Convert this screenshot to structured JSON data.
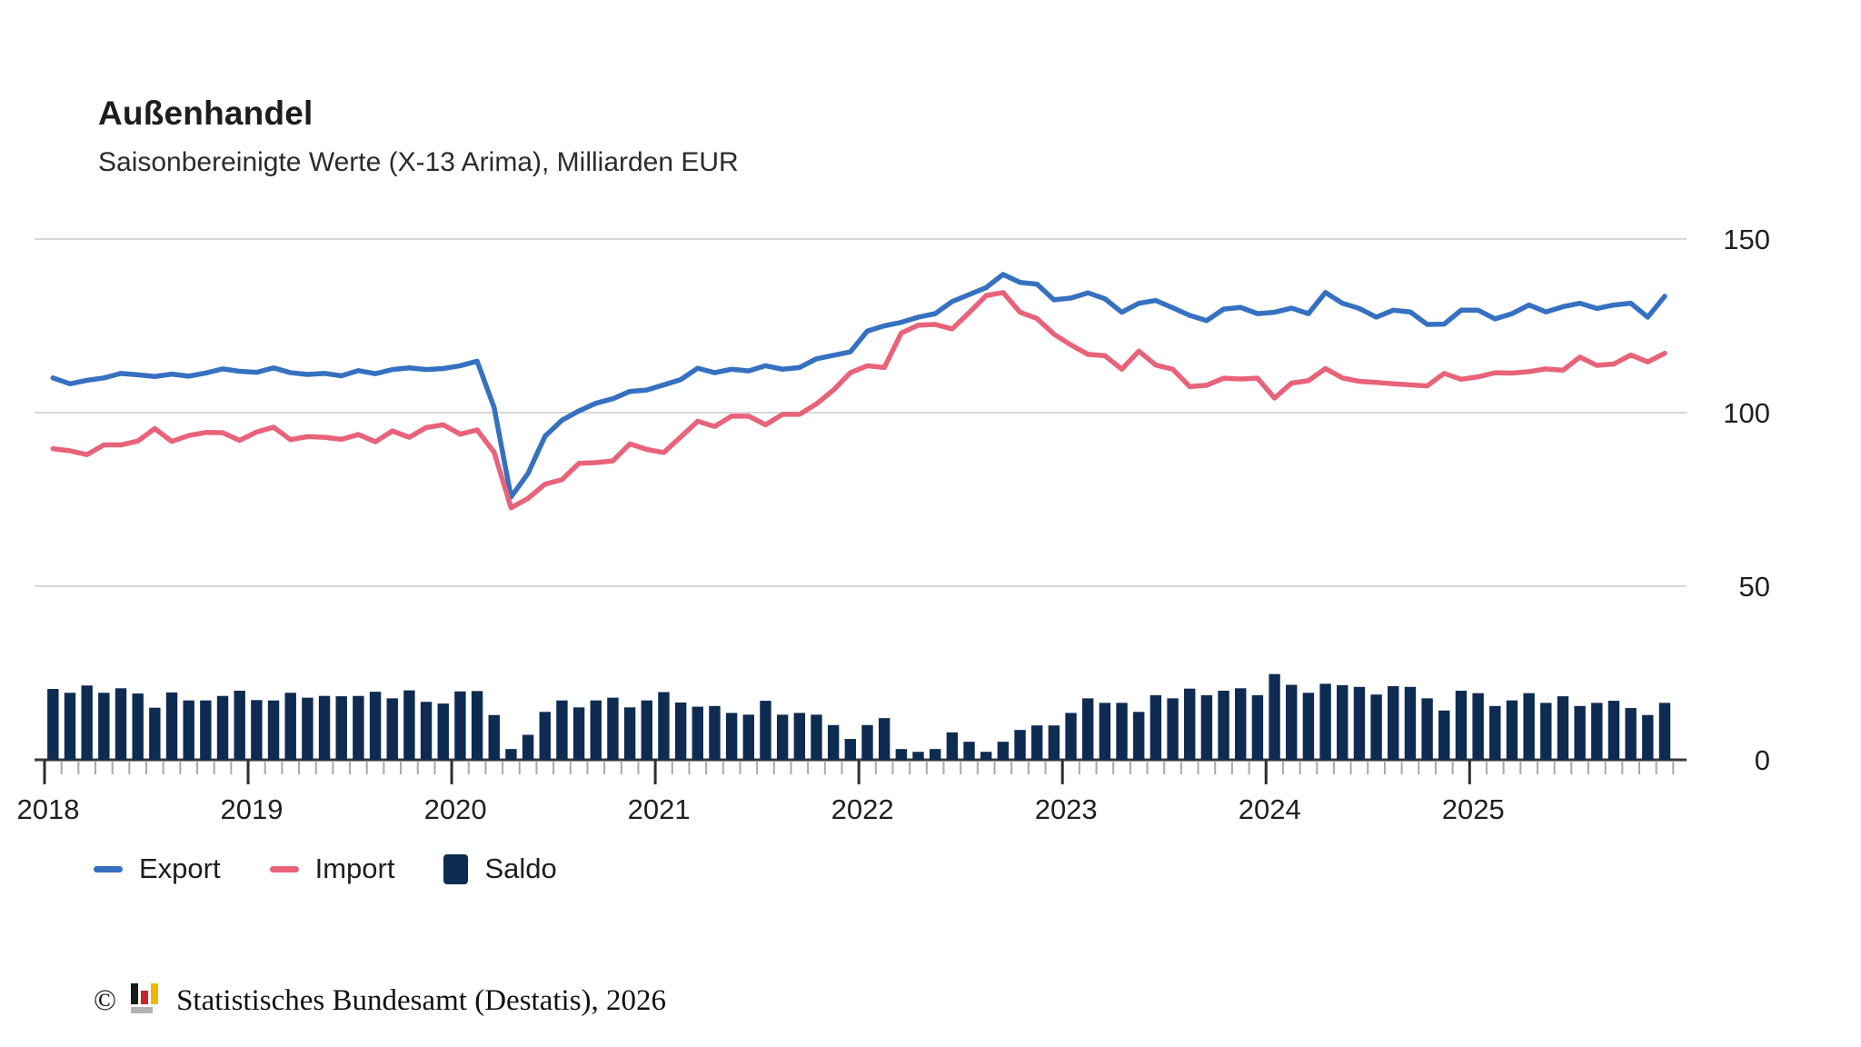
{
  "header": {
    "title": "Außenhandel",
    "subtitle": "Saisonbereinigte Werte (X-13 Arima), Milliarden EUR"
  },
  "colors": {
    "export_line": "#3671c1",
    "import_line": "#e8637a",
    "saldo_bar": "#0e2b52",
    "gridline": "#d8d8d8",
    "axis": "#3a3a3a",
    "minor_tick": "#a8a8a8",
    "major_tick": "#2e2e2e"
  },
  "chart_data": {
    "type": "line+bar",
    "title": "Außenhandel",
    "subtitle": "Saisonbereinigte Werte (X-13 Arima), Milliarden EUR",
    "unit": "Milliarden EUR",
    "x_start": "2018-01",
    "x_end": "2025-12",
    "months_per_year": 12,
    "years": [
      2018,
      2019,
      2020,
      2021,
      2022,
      2023,
      2024,
      2025
    ],
    "y_axis": {
      "ticks": [
        150,
        100,
        50,
        0
      ],
      "range": [
        0,
        150
      ],
      "side": "right",
      "grid": true
    },
    "legend_position": "bottom-left",
    "series": [
      {
        "name": "Export",
        "type": "line",
        "color": "#3671c1",
        "values": [
          110.0,
          108.3,
          109.3,
          110.0,
          111.3,
          110.9,
          110.4,
          111.1,
          110.5,
          111.4,
          112.6,
          111.9,
          111.6,
          112.9,
          111.5,
          111.0,
          111.3,
          110.6,
          112.1,
          111.2,
          112.4,
          112.9,
          112.4,
          112.7,
          113.5,
          114.8,
          101.5,
          75.7,
          82.5,
          93.2,
          97.8,
          100.5,
          102.7,
          104.0,
          106.1,
          106.5,
          108.0,
          109.5,
          112.8,
          111.5,
          112.5,
          112.0,
          113.5,
          112.5,
          113.0,
          115.5,
          116.5,
          117.5,
          123.5,
          125.0,
          126.0,
          127.5,
          128.5,
          132.0,
          134.0,
          136.0,
          139.8,
          137.5,
          137.0,
          132.5,
          133.0,
          134.5,
          132.8,
          128.9,
          131.5,
          132.3,
          130.2,
          128.0,
          126.5,
          129.8,
          130.3,
          128.5,
          128.9,
          130.1,
          128.5,
          134.6,
          131.5,
          130.0,
          127.5,
          129.5,
          129.0,
          125.4,
          125.5,
          129.5,
          129.5,
          127.0,
          128.5,
          131.0,
          129.0,
          130.5,
          131.5,
          130.0,
          131.0,
          131.5,
          127.5,
          133.5
        ]
      },
      {
        "name": "Import",
        "type": "line",
        "color": "#e8637a",
        "values": [
          89.6,
          89.0,
          87.9,
          90.7,
          90.7,
          91.8,
          95.4,
          91.7,
          93.4,
          94.3,
          94.2,
          92.0,
          94.4,
          95.8,
          92.2,
          93.1,
          92.9,
          92.3,
          93.7,
          91.6,
          94.7,
          92.9,
          95.7,
          96.5,
          93.8,
          95.0,
          88.6,
          72.6,
          75.3,
          79.4,
          80.7,
          85.4,
          85.6,
          86.1,
          91.0,
          89.4,
          88.5,
          93.0,
          97.5,
          96.0,
          99.0,
          99.0,
          96.5,
          99.5,
          99.5,
          102.5,
          106.5,
          111.5,
          113.5,
          113.0,
          122.9,
          125.2,
          125.4,
          124.1,
          128.8,
          133.7,
          134.6,
          128.9,
          127.1,
          122.6,
          119.5,
          116.8,
          116.4,
          112.5,
          117.7,
          113.7,
          112.5,
          107.5,
          107.9,
          109.9,
          109.7,
          109.9,
          104.2,
          108.5,
          109.2,
          112.7,
          110.0,
          109.0,
          108.7,
          108.3,
          108.0,
          107.7,
          111.3,
          109.6,
          110.3,
          111.5,
          111.4,
          111.8,
          112.6,
          112.2,
          116.0,
          113.6,
          114.0,
          116.6,
          114.6,
          117.1
        ]
      },
      {
        "name": "Saldo",
        "type": "bar",
        "color": "#0e2b52",
        "values": [
          20.4,
          19.3,
          21.4,
          19.3,
          20.6,
          19.1,
          15.0,
          19.4,
          17.1,
          17.1,
          18.4,
          19.9,
          17.2,
          17.1,
          19.3,
          17.9,
          18.4,
          18.3,
          18.4,
          19.6,
          17.7,
          20.0,
          16.7,
          16.2,
          19.7,
          19.8,
          12.9,
          3.1,
          7.2,
          13.8,
          17.1,
          15.1,
          17.1,
          17.9,
          15.1,
          17.1,
          19.5,
          16.5,
          15.3,
          15.5,
          13.5,
          13.0,
          17.0,
          13.0,
          13.5,
          13.0,
          10.0,
          6.0,
          10.0,
          12.0,
          3.1,
          2.3,
          3.1,
          7.9,
          5.2,
          2.3,
          5.2,
          8.6,
          9.9,
          9.9,
          13.5,
          17.7,
          16.4,
          16.4,
          13.8,
          18.6,
          17.7,
          20.5,
          18.6,
          19.9,
          20.6,
          18.6,
          24.7,
          21.6,
          19.3,
          21.9,
          21.5,
          21.0,
          18.8,
          21.2,
          21.0,
          17.7,
          14.2,
          19.9,
          19.2,
          15.5,
          17.1,
          19.2,
          16.4,
          18.3,
          15.5,
          16.4,
          17.0,
          14.9,
          12.9,
          16.4
        ]
      }
    ]
  },
  "footer": {
    "copyright_symbol": "©",
    "source_text": "Statistisches Bundesamt (Destatis), 2026"
  }
}
